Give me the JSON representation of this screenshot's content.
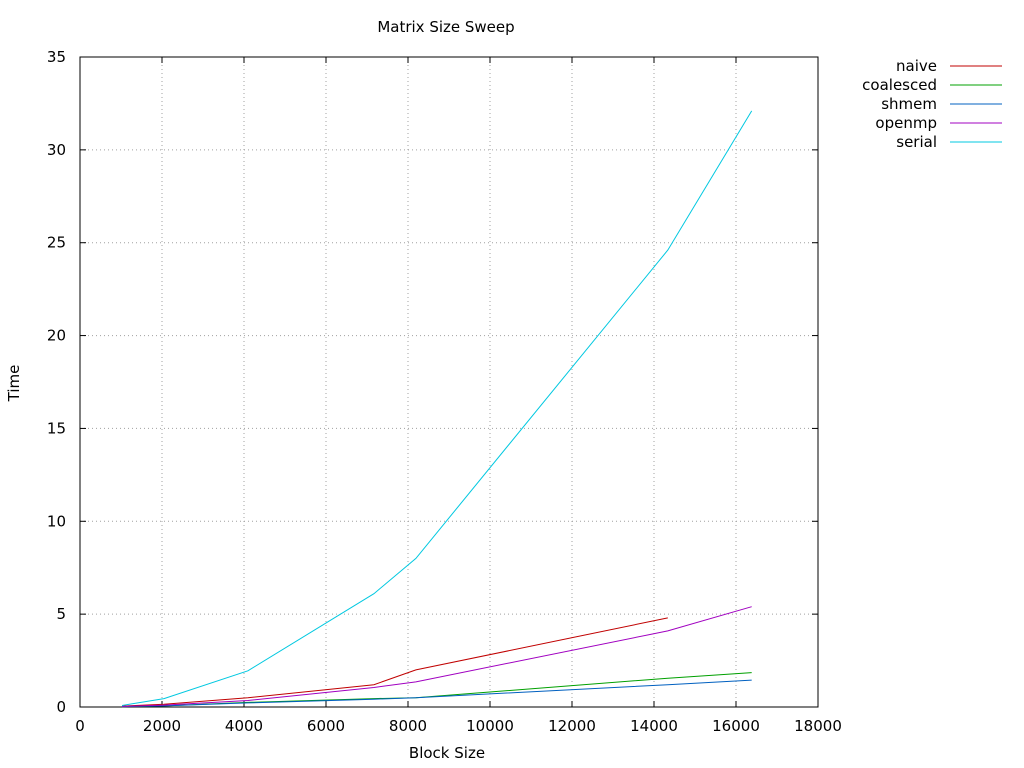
{
  "chart_data": {
    "type": "line",
    "title": "Matrix Size Sweep",
    "xlabel": "Block Size",
    "ylabel": "Time",
    "xlim": [
      0,
      18000
    ],
    "ylim": [
      0,
      35
    ],
    "xticks": [
      0,
      2000,
      4000,
      6000,
      8000,
      10000,
      12000,
      14000,
      16000,
      18000
    ],
    "yticks": [
      0,
      5,
      10,
      15,
      20,
      25,
      30,
      35
    ],
    "grid": true,
    "legend_position": "top-right, outside plot",
    "series": [
      {
        "name": "naive",
        "color": "#c00000",
        "x": [
          1024,
          2048,
          4096,
          7168,
          8192,
          14336
        ],
        "y": [
          0.05,
          0.15,
          0.5,
          1.2,
          2.0,
          4.8
        ]
      },
      {
        "name": "coalesced",
        "color": "#00a000",
        "x": [
          1024,
          2048,
          4096,
          7168,
          8192,
          14336,
          16384
        ],
        "y": [
          0.02,
          0.06,
          0.25,
          0.45,
          0.5,
          1.55,
          1.85
        ]
      },
      {
        "name": "shmem",
        "color": "#0060c0",
        "x": [
          1024,
          2048,
          4096,
          7168,
          8192,
          14336,
          16384
        ],
        "y": [
          0.02,
          0.06,
          0.22,
          0.42,
          0.5,
          1.2,
          1.45
        ]
      },
      {
        "name": "openmp",
        "color": "#a000c0",
        "x": [
          1024,
          2048,
          4096,
          7168,
          8192,
          14336,
          16384
        ],
        "y": [
          0.03,
          0.1,
          0.35,
          1.05,
          1.35,
          4.1,
          5.4
        ]
      },
      {
        "name": "serial",
        "color": "#00c8e0",
        "x": [
          1024,
          2048,
          4096,
          7168,
          8192,
          14336,
          16384
        ],
        "y": [
          0.08,
          0.45,
          1.95,
          6.1,
          8.0,
          24.6,
          32.1
        ]
      }
    ]
  }
}
